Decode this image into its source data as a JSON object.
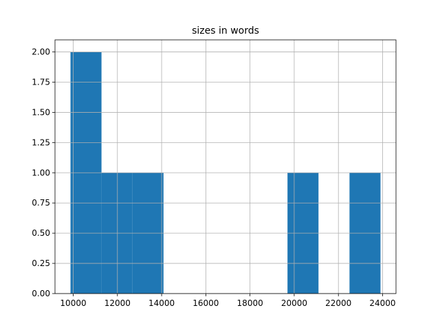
{
  "chart_data": {
    "type": "histogram",
    "title": "sizes in words",
    "bins": [
      9876,
      11279,
      12682,
      14085,
      15488,
      16891,
      18294,
      19697,
      21100,
      22503,
      23906
    ],
    "values": [
      2,
      1,
      1,
      0,
      0,
      0,
      0,
      1,
      0,
      1
    ],
    "color": "#1f77b4",
    "xlim": [
      9175,
      24607
    ],
    "xticks": [
      10000,
      12000,
      14000,
      16000,
      18000,
      20000,
      22000,
      24000
    ],
    "ylim": [
      0,
      2.1
    ],
    "yticks": [
      {
        "value": 0,
        "label": "0.00"
      },
      {
        "value": 0.25,
        "label": "0.25"
      },
      {
        "value": 0.5,
        "label": "0.50"
      },
      {
        "value": 0.75,
        "label": "0.75"
      },
      {
        "value": 1,
        "label": "1.00"
      },
      {
        "value": 1.25,
        "label": "1.25"
      },
      {
        "value": 1.5,
        "label": "1.50"
      },
      {
        "value": 1.75,
        "label": "1.75"
      },
      {
        "value": 2,
        "label": "2.00"
      }
    ],
    "grid": true
  }
}
